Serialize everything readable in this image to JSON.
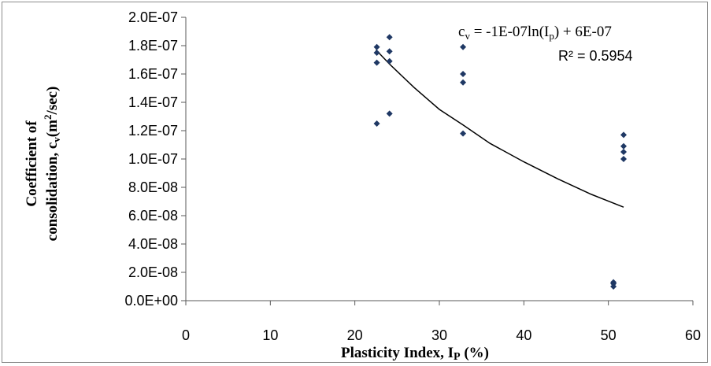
{
  "chart_data": {
    "type": "scatter",
    "x_axis": {
      "label_main": "Plasticity Index, I",
      "label_sub": "P",
      "label_tail": " (%)",
      "range": [
        0,
        60
      ],
      "ticks": [
        0,
        10,
        20,
        30,
        40,
        50,
        60
      ],
      "tick_labels": [
        "0",
        "10",
        "20",
        "30",
        "40",
        "50",
        "60"
      ]
    },
    "y_axis": {
      "label_line1": "Coefficient of",
      "label_line2_main": "consolidation, c",
      "label_line2_sub": "v",
      "label_line2_mid": "(m",
      "label_line2_sup": "2",
      "label_line2_tail": "/sec)",
      "range": [
        0,
        2e-07
      ],
      "ticks": [
        0,
        2e-08,
        4e-08,
        6e-08,
        8e-08,
        1e-07,
        1.2e-07,
        1.4e-07,
        1.6e-07,
        1.8e-07,
        2e-07
      ],
      "tick_labels": [
        "0.0E+00",
        "2.0E-08",
        "4.0E-08",
        "6.0E-08",
        "8.0E-08",
        "1.0E-07",
        "1.2E-07",
        "1.4E-07",
        "1.6E-07",
        "1.8E-07",
        "2.0E-07"
      ]
    },
    "points": [
      {
        "x": 22.6,
        "y": 1.79e-07
      },
      {
        "x": 22.6,
        "y": 1.75e-07
      },
      {
        "x": 22.6,
        "y": 1.68e-07
      },
      {
        "x": 22.6,
        "y": 1.25e-07
      },
      {
        "x": 24.1,
        "y": 1.86e-07
      },
      {
        "x": 24.1,
        "y": 1.76e-07
      },
      {
        "x": 24.1,
        "y": 1.69e-07
      },
      {
        "x": 24.1,
        "y": 1.32e-07
      },
      {
        "x": 32.8,
        "y": 1.79e-07
      },
      {
        "x": 32.8,
        "y": 1.6e-07
      },
      {
        "x": 32.8,
        "y": 1.54e-07
      },
      {
        "x": 32.8,
        "y": 1.18e-07
      },
      {
        "x": 50.6,
        "y": 1.3e-08
      },
      {
        "x": 50.6,
        "y": 1.2e-08
      },
      {
        "x": 50.6,
        "y": 1e-08
      },
      {
        "x": 51.8,
        "y": 1.17e-07
      },
      {
        "x": 51.8,
        "y": 1.09e-07
      },
      {
        "x": 51.8,
        "y": 1.05e-07
      },
      {
        "x": 51.8,
        "y": 1e-07
      }
    ],
    "trendline": {
      "type": "logarithmic",
      "x_range": [
        22.5,
        51.8
      ],
      "fit_curve": [
        {
          "x": 22.5,
          "y": 1.77e-07
        },
        {
          "x": 24.1,
          "y": 1.67e-07
        },
        {
          "x": 27.0,
          "y": 1.505e-07
        },
        {
          "x": 30.0,
          "y": 1.35e-07
        },
        {
          "x": 32.8,
          "y": 1.24e-07
        },
        {
          "x": 36.0,
          "y": 1.11e-07
        },
        {
          "x": 40.0,
          "y": 9.8e-08
        },
        {
          "x": 44.0,
          "y": 8.6e-08
        },
        {
          "x": 48.0,
          "y": 7.5e-08
        },
        {
          "x": 51.8,
          "y": 6.6e-08
        }
      ],
      "equation_prefix": "c",
      "equation_prefix_sub": "v",
      "equation_mid": " = -1E-07ln(I",
      "equation_mid_sub": "p",
      "equation_tail": ") + 6E-07",
      "r_squared": "R² = 0.5954"
    },
    "colors": {
      "marker": "#1f3864",
      "line": "#000000",
      "axis": "#595959"
    },
    "grid": false,
    "legend": "none"
  }
}
